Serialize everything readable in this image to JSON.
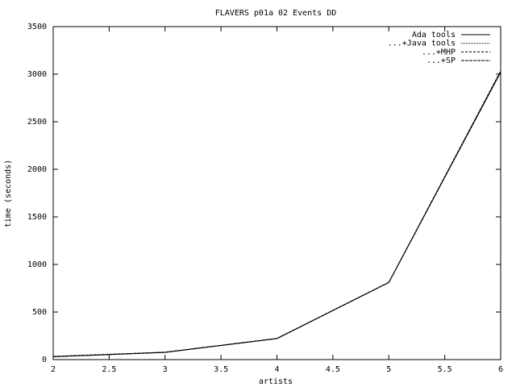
{
  "chart_data": {
    "type": "line",
    "title": "FLAVERS p01a 02 Events DD",
    "x_label": "artists",
    "y_label": "time (seconds)",
    "x": [
      2,
      3,
      4,
      5,
      6
    ],
    "series": [
      {
        "name": "Ada tools",
        "color": "#000000",
        "dash": "none",
        "values": [
          30,
          75,
          220,
          810,
          3020
        ]
      },
      {
        "name": "...+Java tools",
        "color": "#000000",
        "dash": "1,1",
        "values": [
          31,
          76,
          221,
          811,
          3025
        ]
      },
      {
        "name": "...+MHP",
        "color": "#000000",
        "dash": "3,2",
        "values": [
          32,
          77,
          222,
          812,
          3030
        ]
      },
      {
        "name": "...+SP",
        "color": "#000000",
        "dash": "4,1",
        "values": [
          33,
          78,
          223,
          813,
          3035
        ]
      }
    ],
    "xlim": [
      2,
      6
    ],
    "ylim": [
      0,
      3500
    ],
    "xticks": [
      2,
      2.5,
      3,
      3.5,
      4,
      4.5,
      5,
      5.5,
      6
    ],
    "yticks": [
      0,
      500,
      1000,
      1500,
      2000,
      2500,
      3000,
      3500
    ],
    "legend": "top-right"
  }
}
